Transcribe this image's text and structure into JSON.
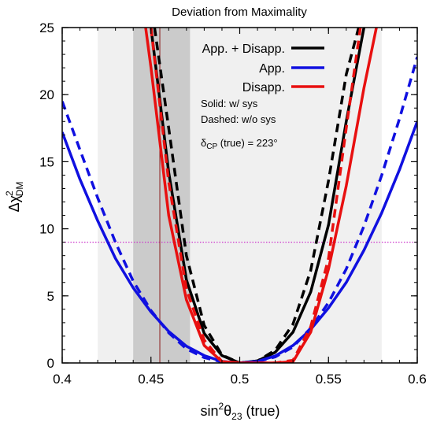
{
  "chart_data": {
    "type": "line",
    "title": "Deviation from Maximality",
    "xlabel": {
      "main": "sin",
      "sup": "2",
      "theta": "θ",
      "sub": "23",
      "suffix": " (true)"
    },
    "ylabel": {
      "delta": "Δ",
      "chi": "χ",
      "sup": "2",
      "sub": "DM"
    },
    "xlim": [
      0.4,
      0.6
    ],
    "ylim": [
      0,
      25
    ],
    "xticks": [
      "0.4",
      "0.45",
      "0.5",
      "0.55",
      "0.6"
    ],
    "xtick_values": [
      0.4,
      0.45,
      0.5,
      0.55,
      0.6
    ],
    "yticks": [
      "0",
      "5",
      "10",
      "15",
      "20",
      "25"
    ],
    "ytick_values": [
      0,
      5,
      10,
      15,
      20,
      25
    ],
    "bands": [
      {
        "range": [
          0.42,
          0.58
        ],
        "color": "#f0f0f0"
      },
      {
        "range": [
          0.44,
          0.472
        ],
        "color": "#cbcbcb"
      }
    ],
    "vline": {
      "x": 0.455,
      "color": "#8b1a1a"
    },
    "hline": {
      "y": 9,
      "color": "#cc33cc"
    },
    "colors": {
      "combined": "#000000",
      "app": "#1010e0",
      "disapp": "#e81010"
    },
    "legend": [
      {
        "label": "App. + Disapp.",
        "color": "#000000"
      },
      {
        "label": "App.",
        "color": "#1010e0"
      },
      {
        "label": "Disapp.",
        "color": "#e81010"
      }
    ],
    "notes": {
      "solid": "Solid: w/ sys",
      "dashed": "Dashed: w/o sys",
      "dcp_delta": "δ",
      "dcp_sub": "CP",
      "dcp_rest": " (true) = 223°"
    },
    "series": [
      {
        "color_key": "combined",
        "style": "solid",
        "x": [
          0.45,
          0.46,
          0.47,
          0.48,
          0.49,
          0.5,
          0.51,
          0.52,
          0.53,
          0.54,
          0.55,
          0.56,
          0.57
        ],
        "y": [
          25.0,
          14.2,
          6.2,
          2.2,
          0.55,
          0.0,
          0.15,
          0.8,
          2.3,
          5.3,
          10.3,
          18.0,
          25.0
        ]
      },
      {
        "color_key": "combined",
        "style": "dashed",
        "x": [
          0.452,
          0.46,
          0.47,
          0.48,
          0.49,
          0.5,
          0.51,
          0.52,
          0.53,
          0.54,
          0.55,
          0.56,
          0.567
        ],
        "y": [
          25.0,
          17.5,
          8.0,
          2.8,
          0.6,
          0.0,
          0.15,
          0.95,
          2.9,
          6.9,
          13.6,
          21.5,
          25.0
        ]
      },
      {
        "color_key": "app",
        "style": "solid",
        "x": [
          0.4,
          0.41,
          0.42,
          0.43,
          0.44,
          0.45,
          0.46,
          0.47,
          0.48,
          0.49,
          0.5,
          0.51,
          0.52,
          0.53,
          0.54,
          0.55,
          0.56,
          0.57,
          0.58,
          0.59,
          0.6
        ],
        "y": [
          17.2,
          13.7,
          10.6,
          7.8,
          5.6,
          3.8,
          2.35,
          1.25,
          0.55,
          0.12,
          0.0,
          0.12,
          0.52,
          1.3,
          2.5,
          4.1,
          6.0,
          8.4,
          11.2,
          14.4,
          18.0
        ]
      },
      {
        "color_key": "app",
        "style": "dashed",
        "x": [
          0.4,
          0.41,
          0.42,
          0.43,
          0.44,
          0.45,
          0.46,
          0.47,
          0.48,
          0.49,
          0.5,
          0.51,
          0.52,
          0.53,
          0.54,
          0.55,
          0.56,
          0.57,
          0.58,
          0.59,
          0.6
        ],
        "y": [
          19.5,
          15.9,
          12.3,
          9.0,
          6.1,
          3.9,
          2.25,
          1.05,
          0.4,
          0.08,
          0.0,
          0.1,
          0.45,
          1.2,
          2.6,
          4.5,
          7.0,
          10.2,
          14.0,
          18.2,
          22.8
        ]
      },
      {
        "color_key": "disapp",
        "style": "solid",
        "x": [
          0.447,
          0.45,
          0.46,
          0.47,
          0.48,
          0.49,
          0.5,
          0.51,
          0.52,
          0.53,
          0.54,
          0.55,
          0.56,
          0.57,
          0.577
        ],
        "y": [
          25.0,
          22.0,
          11.0,
          4.7,
          1.3,
          0.1,
          0.0,
          0.0,
          0.0,
          0.1,
          2.3,
          7.0,
          13.2,
          20.5,
          25.0
        ]
      },
      {
        "color_key": "disapp",
        "style": "dashed",
        "x": [
          0.45,
          0.46,
          0.47,
          0.48,
          0.49,
          0.5,
          0.51,
          0.52,
          0.53,
          0.54,
          0.55,
          0.56,
          0.568
        ],
        "y": [
          25.0,
          13.5,
          5.5,
          1.7,
          0.1,
          0.0,
          0.0,
          0.0,
          0.2,
          2.7,
          7.8,
          17.5,
          25.0
        ]
      }
    ]
  }
}
